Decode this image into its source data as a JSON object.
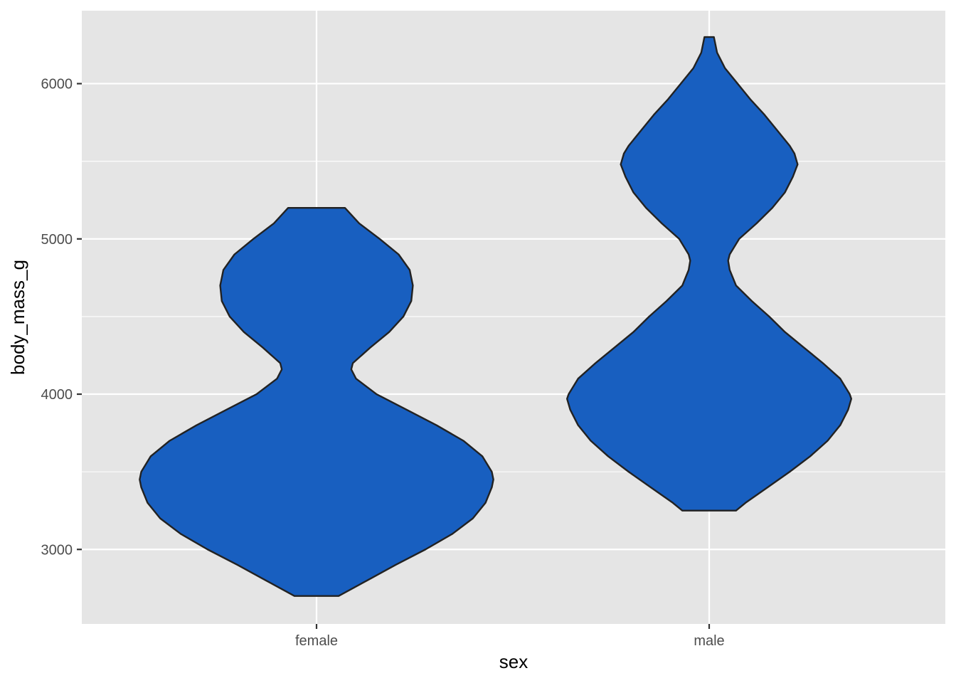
{
  "chart_data": {
    "type": "violin",
    "xlabel": "sex",
    "ylabel": "body_mass_g",
    "categories": [
      "female",
      "male"
    ],
    "ylim": [
      2520,
      6470
    ],
    "yticks": [
      3000,
      4000,
      5000,
      6000
    ],
    "ytick_labels": [
      "3000",
      "4000",
      "5000",
      "6000"
    ],
    "grid": true,
    "colors": {
      "panel": "#e5e5e5",
      "grid": "#ffffff",
      "fill": "#185fc0",
      "outline": "#222222",
      "tick": "#333333",
      "tick_label": "#4d4d4d"
    },
    "violins": [
      {
        "category": "female",
        "min": 2700,
        "max": 5200,
        "profile": [
          [
            2700,
            0.14
          ],
          [
            2800,
            0.32
          ],
          [
            2900,
            0.5
          ],
          [
            3000,
            0.69
          ],
          [
            3100,
            0.86
          ],
          [
            3200,
            0.99
          ],
          [
            3300,
            1.07
          ],
          [
            3400,
            1.11
          ],
          [
            3450,
            1.12
          ],
          [
            3500,
            1.11
          ],
          [
            3600,
            1.05
          ],
          [
            3700,
            0.93
          ],
          [
            3800,
            0.76
          ],
          [
            3900,
            0.57
          ],
          [
            4000,
            0.38
          ],
          [
            4100,
            0.25
          ],
          [
            4160,
            0.22
          ],
          [
            4200,
            0.23
          ],
          [
            4300,
            0.34
          ],
          [
            4400,
            0.46
          ],
          [
            4500,
            0.55
          ],
          [
            4600,
            0.6
          ],
          [
            4700,
            0.61
          ],
          [
            4800,
            0.59
          ],
          [
            4900,
            0.52
          ],
          [
            5000,
            0.4
          ],
          [
            5100,
            0.27
          ],
          [
            5200,
            0.18
          ]
        ]
      },
      {
        "category": "male",
        "min": 3250,
        "max": 6300,
        "profile": [
          [
            3250,
            0.17
          ],
          [
            3300,
            0.23
          ],
          [
            3400,
            0.37
          ],
          [
            3500,
            0.51
          ],
          [
            3600,
            0.64
          ],
          [
            3700,
            0.75
          ],
          [
            3800,
            0.83
          ],
          [
            3900,
            0.88
          ],
          [
            3970,
            0.9
          ],
          [
            4000,
            0.89
          ],
          [
            4100,
            0.83
          ],
          [
            4200,
            0.72
          ],
          [
            4300,
            0.6
          ],
          [
            4400,
            0.48
          ],
          [
            4500,
            0.38
          ],
          [
            4600,
            0.27
          ],
          [
            4700,
            0.17
          ],
          [
            4800,
            0.13
          ],
          [
            4860,
            0.12
          ],
          [
            4900,
            0.13
          ],
          [
            5000,
            0.19
          ],
          [
            5100,
            0.3
          ],
          [
            5200,
            0.4
          ],
          [
            5300,
            0.48
          ],
          [
            5400,
            0.53
          ],
          [
            5480,
            0.56
          ],
          [
            5550,
            0.54
          ],
          [
            5600,
            0.51
          ],
          [
            5700,
            0.43
          ],
          [
            5800,
            0.35
          ],
          [
            5900,
            0.26
          ],
          [
            6000,
            0.18
          ],
          [
            6100,
            0.1
          ],
          [
            6200,
            0.05
          ],
          [
            6300,
            0.03
          ]
        ]
      }
    ]
  }
}
